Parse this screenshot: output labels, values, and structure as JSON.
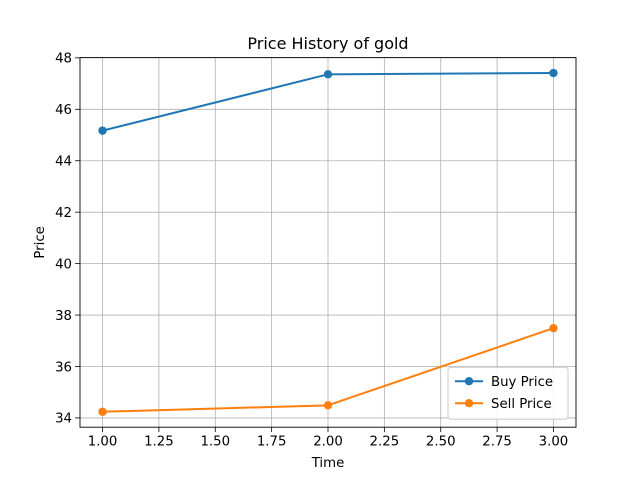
{
  "chart_data": {
    "type": "line",
    "title": "Price History of gold",
    "xlabel": "Time",
    "ylabel": "Price",
    "x": [
      1.0,
      2.0,
      3.0
    ],
    "series": [
      {
        "name": "Buy Price",
        "values": [
          45.17,
          47.36,
          47.41
        ],
        "color": "#1f77b4"
      },
      {
        "name": "Sell Price",
        "values": [
          34.24,
          34.49,
          37.49
        ],
        "color": "#ff7f0e"
      }
    ],
    "xlim": [
      0.9,
      3.1
    ],
    "ylim": [
      33.64,
      48.01
    ],
    "xticks": [
      "1.00",
      "1.25",
      "1.50",
      "1.75",
      "2.00",
      "2.25",
      "2.50",
      "2.75",
      "3.00"
    ],
    "yticks": [
      "34",
      "36",
      "38",
      "40",
      "42",
      "44",
      "46",
      "48"
    ],
    "grid": true,
    "legend_position": "lower-right",
    "marker": "circle"
  }
}
